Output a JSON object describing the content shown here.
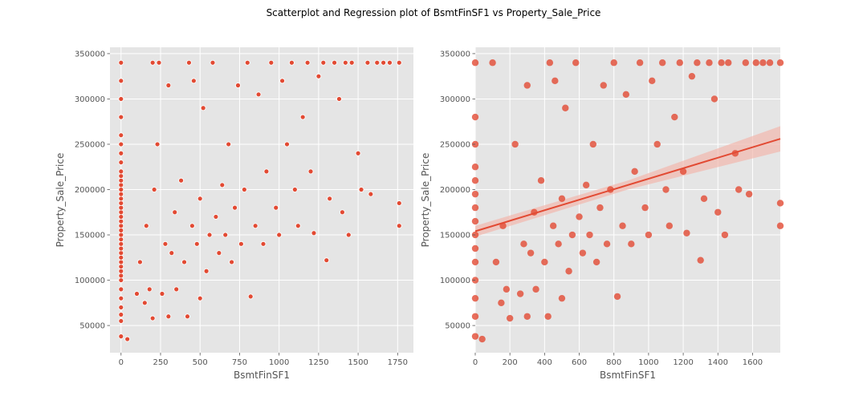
{
  "figure": {
    "title": "Scatterplot and Regression plot of BsmtFinSF1 vs Property_Sale_Price"
  },
  "colors": {
    "background": "#E5E5E5",
    "grid": "#FFFFFF",
    "points": "#E24A33",
    "band": "#F2B8AE",
    "text": "#555555"
  },
  "chart_data": [
    {
      "type": "scatter",
      "xlabel": "BsmtFinSF1",
      "ylabel": "Property_Sale_Price",
      "xlim": [
        -70,
        1850
      ],
      "ylim": [
        20000,
        357000
      ],
      "xticks": [
        0,
        250,
        500,
        750,
        1000,
        1250,
        1500,
        1750
      ],
      "yticks": [
        50000,
        100000,
        150000,
        200000,
        250000,
        300000,
        350000
      ],
      "grid": true,
      "style": "points with white edge",
      "points": [
        [
          0,
          38000
        ],
        [
          0,
          55000
        ],
        [
          0,
          62000
        ],
        [
          0,
          70000
        ],
        [
          0,
          80000
        ],
        [
          0,
          90000
        ],
        [
          0,
          100000
        ],
        [
          0,
          105000
        ],
        [
          0,
          110000
        ],
        [
          0,
          115000
        ],
        [
          0,
          120000
        ],
        [
          0,
          125000
        ],
        [
          0,
          130000
        ],
        [
          0,
          135000
        ],
        [
          0,
          140000
        ],
        [
          0,
          145000
        ],
        [
          0,
          150000
        ],
        [
          0,
          155000
        ],
        [
          0,
          160000
        ],
        [
          0,
          165000
        ],
        [
          0,
          170000
        ],
        [
          0,
          175000
        ],
        [
          0,
          180000
        ],
        [
          0,
          185000
        ],
        [
          0,
          190000
        ],
        [
          0,
          195000
        ],
        [
          0,
          200000
        ],
        [
          0,
          205000
        ],
        [
          0,
          210000
        ],
        [
          0,
          215000
        ],
        [
          0,
          220000
        ],
        [
          0,
          230000
        ],
        [
          0,
          240000
        ],
        [
          0,
          250000
        ],
        [
          0,
          260000
        ],
        [
          0,
          280000
        ],
        [
          0,
          300000
        ],
        [
          0,
          320000
        ],
        [
          0,
          340000
        ],
        [
          40,
          35000
        ],
        [
          100,
          85000
        ],
        [
          120,
          120000
        ],
        [
          150,
          75000
        ],
        [
          160,
          160000
        ],
        [
          180,
          90000
        ],
        [
          200,
          58000
        ],
        [
          200,
          340000
        ],
        [
          210,
          200000
        ],
        [
          230,
          250000
        ],
        [
          240,
          340000
        ],
        [
          260,
          85000
        ],
        [
          280,
          140000
        ],
        [
          300,
          60000
        ],
        [
          300,
          315000
        ],
        [
          320,
          130000
        ],
        [
          340,
          175000
        ],
        [
          350,
          90000
        ],
        [
          380,
          210000
        ],
        [
          400,
          120000
        ],
        [
          420,
          60000
        ],
        [
          430,
          340000
        ],
        [
          450,
          160000
        ],
        [
          460,
          320000
        ],
        [
          480,
          140000
        ],
        [
          500,
          190000
        ],
        [
          500,
          80000
        ],
        [
          520,
          290000
        ],
        [
          540,
          110000
        ],
        [
          560,
          150000
        ],
        [
          580,
          340000
        ],
        [
          600,
          170000
        ],
        [
          620,
          130000
        ],
        [
          640,
          205000
        ],
        [
          660,
          150000
        ],
        [
          680,
          250000
        ],
        [
          700,
          120000
        ],
        [
          720,
          180000
        ],
        [
          740,
          315000
        ],
        [
          760,
          140000
        ],
        [
          780,
          200000
        ],
        [
          800,
          340000
        ],
        [
          820,
          82000
        ],
        [
          850,
          160000
        ],
        [
          870,
          305000
        ],
        [
          900,
          140000
        ],
        [
          920,
          220000
        ],
        [
          950,
          340000
        ],
        [
          980,
          180000
        ],
        [
          1000,
          150000
        ],
        [
          1020,
          320000
        ],
        [
          1050,
          250000
        ],
        [
          1080,
          340000
        ],
        [
          1100,
          200000
        ],
        [
          1120,
          160000
        ],
        [
          1150,
          280000
        ],
        [
          1180,
          340000
        ],
        [
          1200,
          220000
        ],
        [
          1220,
          152000
        ],
        [
          1250,
          325000
        ],
        [
          1280,
          340000
        ],
        [
          1300,
          122000
        ],
        [
          1320,
          190000
        ],
        [
          1350,
          340000
        ],
        [
          1380,
          300000
        ],
        [
          1400,
          175000
        ],
        [
          1420,
          340000
        ],
        [
          1440,
          150000
        ],
        [
          1460,
          340000
        ],
        [
          1500,
          240000
        ],
        [
          1520,
          200000
        ],
        [
          1560,
          340000
        ],
        [
          1580,
          195000
        ],
        [
          1620,
          340000
        ],
        [
          1660,
          340000
        ],
        [
          1700,
          340000
        ],
        [
          1760,
          160000
        ],
        [
          1760,
          185000
        ],
        [
          1760,
          340000
        ]
      ]
    },
    {
      "type": "scatter",
      "xlabel": "BsmtFinSF1",
      "ylabel": "Property_Sale_Price",
      "xlim": [
        0,
        1760
      ],
      "ylim": [
        20000,
        357000
      ],
      "xticks": [
        0,
        200,
        400,
        600,
        800,
        1000,
        1200,
        1400,
        1600
      ],
      "yticks": [
        50000,
        100000,
        150000,
        200000,
        250000,
        300000,
        350000
      ],
      "grid": true,
      "style": "regression plot",
      "regression": {
        "x": [
          0,
          1760
        ],
        "y": [
          154000,
          256000
        ]
      },
      "confidence_band": {
        "x": [
          0,
          880,
          1760
        ],
        "upper": [
          160000,
          210000,
          270000
        ],
        "lower": [
          148000,
          200000,
          242000
        ]
      },
      "points": [
        [
          0,
          38000
        ],
        [
          0,
          60000
        ],
        [
          0,
          80000
        ],
        [
          0,
          100000
        ],
        [
          0,
          120000
        ],
        [
          0,
          135000
        ],
        [
          0,
          150000
        ],
        [
          0,
          165000
        ],
        [
          0,
          180000
        ],
        [
          0,
          195000
        ],
        [
          0,
          210000
        ],
        [
          0,
          225000
        ],
        [
          0,
          250000
        ],
        [
          0,
          280000
        ],
        [
          0,
          340000
        ],
        [
          40,
          35000
        ],
        [
          100,
          340000
        ],
        [
          120,
          120000
        ],
        [
          150,
          75000
        ],
        [
          160,
          160000
        ],
        [
          180,
          90000
        ],
        [
          200,
          58000
        ],
        [
          230,
          250000
        ],
        [
          260,
          85000
        ],
        [
          280,
          140000
        ],
        [
          300,
          60000
        ],
        [
          300,
          315000
        ],
        [
          320,
          130000
        ],
        [
          340,
          175000
        ],
        [
          350,
          90000
        ],
        [
          380,
          210000
        ],
        [
          400,
          120000
        ],
        [
          420,
          60000
        ],
        [
          430,
          340000
        ],
        [
          450,
          160000
        ],
        [
          460,
          320000
        ],
        [
          480,
          140000
        ],
        [
          500,
          190000
        ],
        [
          500,
          80000
        ],
        [
          520,
          290000
        ],
        [
          540,
          110000
        ],
        [
          560,
          150000
        ],
        [
          580,
          340000
        ],
        [
          600,
          170000
        ],
        [
          620,
          130000
        ],
        [
          640,
          205000
        ],
        [
          660,
          150000
        ],
        [
          680,
          250000
        ],
        [
          700,
          120000
        ],
        [
          720,
          180000
        ],
        [
          740,
          315000
        ],
        [
          760,
          140000
        ],
        [
          780,
          200000
        ],
        [
          800,
          340000
        ],
        [
          820,
          82000
        ],
        [
          850,
          160000
        ],
        [
          870,
          305000
        ],
        [
          900,
          140000
        ],
        [
          920,
          220000
        ],
        [
          950,
          340000
        ],
        [
          980,
          180000
        ],
        [
          1000,
          150000
        ],
        [
          1020,
          320000
        ],
        [
          1050,
          250000
        ],
        [
          1080,
          340000
        ],
        [
          1100,
          200000
        ],
        [
          1120,
          160000
        ],
        [
          1150,
          280000
        ],
        [
          1180,
          340000
        ],
        [
          1200,
          220000
        ],
        [
          1220,
          152000
        ],
        [
          1250,
          325000
        ],
        [
          1280,
          340000
        ],
        [
          1300,
          122000
        ],
        [
          1320,
          190000
        ],
        [
          1350,
          340000
        ],
        [
          1380,
          300000
        ],
        [
          1400,
          175000
        ],
        [
          1420,
          340000
        ],
        [
          1440,
          150000
        ],
        [
          1460,
          340000
        ],
        [
          1500,
          240000
        ],
        [
          1520,
          200000
        ],
        [
          1560,
          340000
        ],
        [
          1580,
          195000
        ],
        [
          1620,
          340000
        ],
        [
          1660,
          340000
        ],
        [
          1700,
          340000
        ],
        [
          1760,
          160000
        ],
        [
          1760,
          185000
        ],
        [
          1760,
          340000
        ]
      ]
    }
  ]
}
